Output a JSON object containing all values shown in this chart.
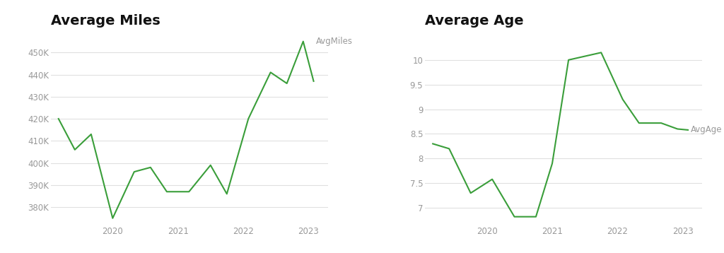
{
  "miles_x": [
    2019.17,
    2019.42,
    2019.67,
    2020.0,
    2020.33,
    2020.58,
    2020.83,
    2021.17,
    2021.5,
    2021.75,
    2022.08,
    2022.42,
    2022.67,
    2022.92,
    2023.08
  ],
  "miles_y": [
    420000,
    406000,
    413000,
    375000,
    396000,
    398000,
    387000,
    387000,
    399000,
    386000,
    420000,
    441000,
    436000,
    455000,
    437000
  ],
  "age_x": [
    2019.17,
    2019.42,
    2019.75,
    2020.08,
    2020.42,
    2020.75,
    2021.0,
    2021.25,
    2021.75,
    2022.08,
    2022.33,
    2022.67,
    2022.92,
    2023.08
  ],
  "age_y": [
    8.3,
    8.2,
    7.3,
    7.58,
    6.82,
    6.82,
    7.9,
    10.0,
    10.15,
    9.2,
    8.72,
    8.72,
    8.6,
    8.58
  ],
  "line_color": "#3a9e3a",
  "title_miles": "Average Miles",
  "title_age": "Average Age",
  "label_miles": "AvgMiles",
  "label_age": "AvgAge",
  "miles_yticks": [
    380000,
    390000,
    400000,
    410000,
    420000,
    430000,
    440000,
    450000
  ],
  "age_yticks": [
    7.0,
    7.5,
    8.0,
    8.5,
    9.0,
    9.5,
    10.0
  ],
  "xticks": [
    2020,
    2021,
    2022,
    2023
  ],
  "bg_color": "#ffffff",
  "grid_color": "#e0e0e0",
  "title_fontsize": 14,
  "tick_color": "#999999",
  "label_fontsize": 8.5
}
